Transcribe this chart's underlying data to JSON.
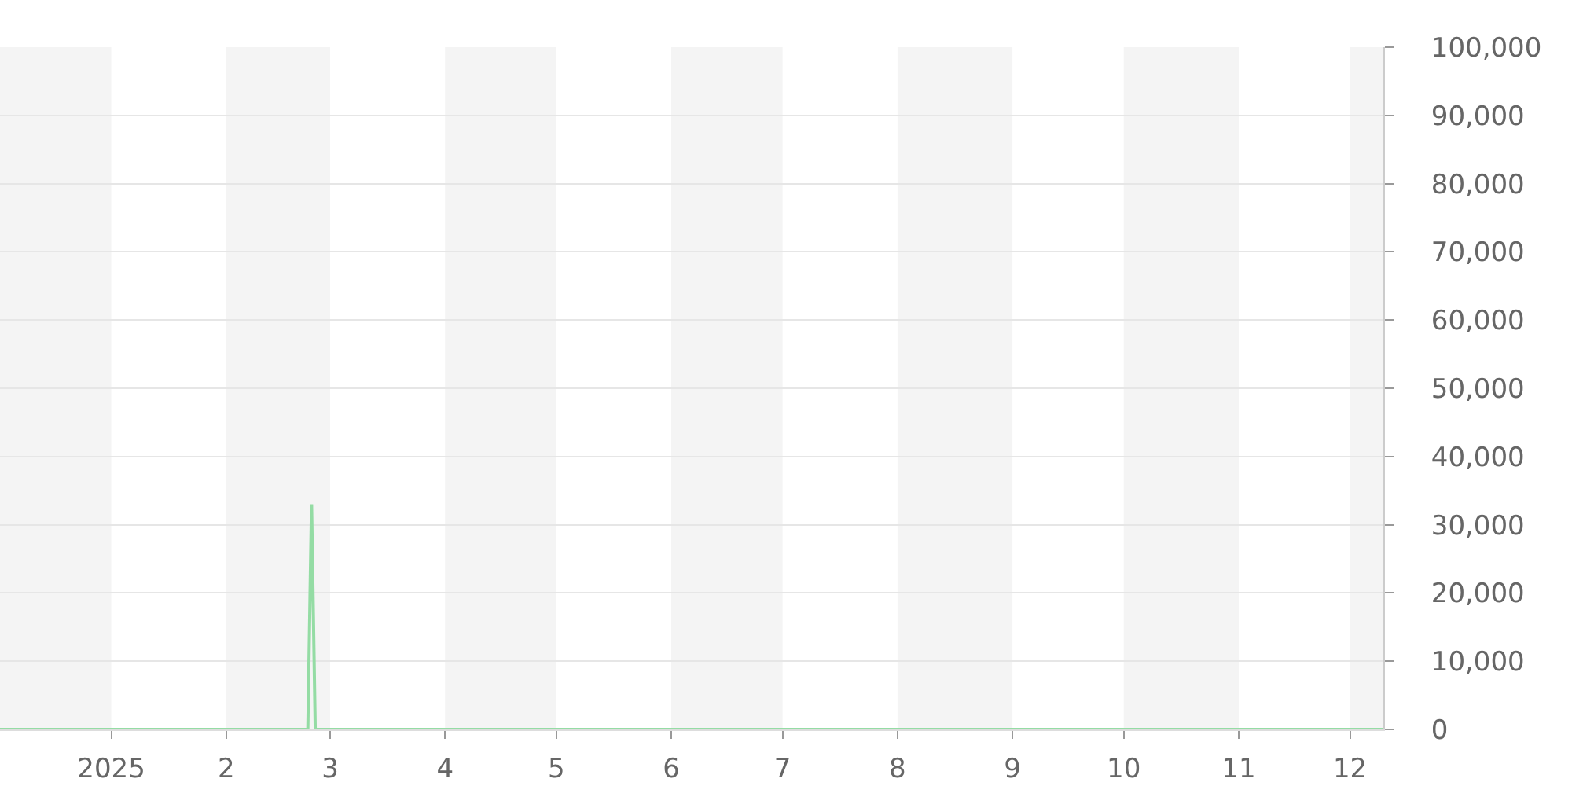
{
  "chart_data": {
    "type": "line",
    "series": [
      {
        "color": "#94dca4",
        "x": [
          "2024-12-02",
          "2025-02-23",
          "2025-02-24",
          "2025-02-25",
          "2025-12-10"
        ],
        "values": [
          0,
          0,
          33000,
          0,
          0
        ]
      }
    ],
    "xlim": [
      "2024-12-02",
      "2025-12-10"
    ],
    "xticks": [
      {
        "value": "2025-01-01",
        "label": "2025"
      },
      {
        "value": "2025-02-01",
        "label": "2"
      },
      {
        "value": "2025-03-01",
        "label": "3"
      },
      {
        "value": "2025-04-01",
        "label": "4"
      },
      {
        "value": "2025-05-01",
        "label": "5"
      },
      {
        "value": "2025-06-01",
        "label": "6"
      },
      {
        "value": "2025-07-01",
        "label": "7"
      },
      {
        "value": "2025-08-01",
        "label": "8"
      },
      {
        "value": "2025-09-01",
        "label": "9"
      },
      {
        "value": "2025-10-01",
        "label": "10"
      },
      {
        "value": "2025-11-01",
        "label": "11"
      },
      {
        "value": "2025-12-01",
        "label": "12"
      }
    ],
    "ylim": [
      0,
      100000
    ],
    "yticks": [
      0,
      {
        "value": 10000,
        "label": "10,000"
      },
      {
        "value": 20000,
        "label": "20,000"
      },
      {
        "value": 30000,
        "label": "30,000"
      },
      {
        "value": 40000,
        "label": "40,000"
      },
      {
        "value": 50000,
        "label": "50,000"
      },
      {
        "value": 60000,
        "label": "60,000"
      },
      {
        "value": 70000,
        "label": "70,000"
      },
      {
        "value": 80000,
        "label": "80,000"
      },
      {
        "value": 90000,
        "label": "90,000"
      },
      {
        "value": 100000,
        "label": "100,000"
      }
    ],
    "grid": "y",
    "bands": [
      {
        "axis": "x",
        "from": "2024-12-02",
        "to": "2025-01-01",
        "color": "#f4f4f4"
      },
      {
        "axis": "x",
        "from": "2025-02-01",
        "to": "2025-03-01",
        "color": "#f4f4f4"
      },
      {
        "axis": "x",
        "from": "2025-04-01",
        "to": "2025-05-01",
        "color": "#f4f4f4"
      },
      {
        "axis": "x",
        "from": "2025-06-01",
        "to": "2025-07-01",
        "color": "#f4f4f4"
      },
      {
        "axis": "x",
        "from": "2025-08-01",
        "to": "2025-09-01",
        "color": "#f4f4f4"
      },
      {
        "axis": "x",
        "from": "2025-10-01",
        "to": "2025-11-01",
        "color": "#f4f4f4"
      },
      {
        "axis": "x",
        "from": "2025-12-01",
        "to": "2025-12-10",
        "color": "#f4f4f4"
      }
    ]
  }
}
